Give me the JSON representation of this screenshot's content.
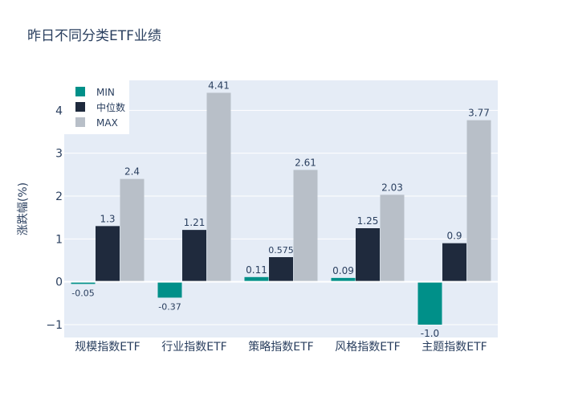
{
  "chart_data": {
    "type": "bar",
    "title": "昨日不同分类ETF业绩",
    "xlabel": "",
    "ylabel": "涨跌幅(%)",
    "categories": [
      "规模指数ETF",
      "行业指数ETF",
      "策略指数ETF",
      "风格指数ETF",
      "主题指数ETF"
    ],
    "series": [
      {
        "name": "MIN",
        "values": [
          -0.05,
          -0.37,
          0.11,
          0.09,
          -1.0
        ],
        "labels": [
          "-0.05",
          "-0.37",
          "0.11",
          "0.09",
          "-1.0"
        ],
        "color": "#009089"
      },
      {
        "name": "中位数",
        "values": [
          1.3,
          1.21,
          0.575,
          1.25,
          0.9
        ],
        "labels": [
          "1.3",
          "1.21",
          "0.575",
          "1.25",
          "0.9"
        ],
        "color": "#1f2a3d"
      },
      {
        "name": "MAX",
        "values": [
          2.4,
          4.41,
          2.61,
          2.03,
          3.77
        ],
        "labels": [
          "2.4",
          "4.41",
          "2.61",
          "2.03",
          "3.77"
        ],
        "color": "#b8bfc8"
      }
    ],
    "ylim": [
      -1.3,
      4.7
    ],
    "yticks": [
      -1,
      0,
      1,
      2,
      3,
      4
    ],
    "grid": true,
    "legend": "top-left",
    "plot_background": "#e5ecf6"
  }
}
